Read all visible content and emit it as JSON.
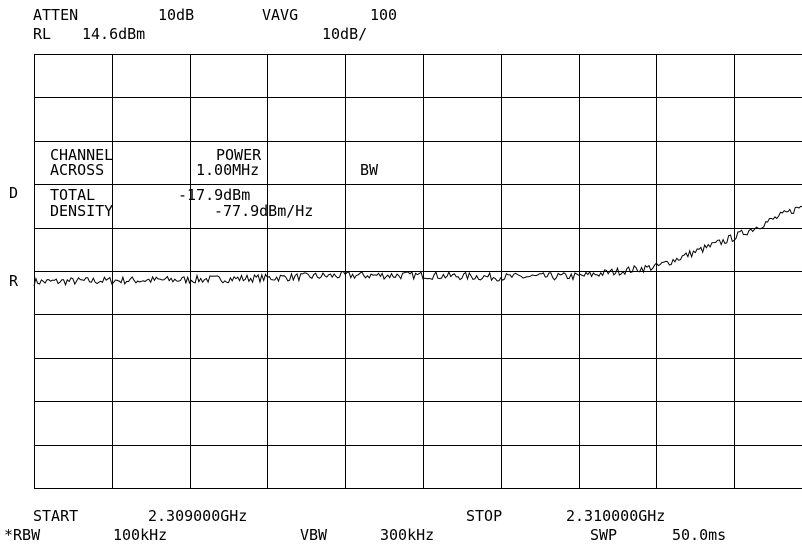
{
  "header": {
    "atten_label": "ATTEN",
    "atten_value": "10dB",
    "vavg_label": "VAVG",
    "vavg_value": "100",
    "rl_label": "RL",
    "rl_value": "14.6dBm",
    "scale": "10dB/"
  },
  "side_labels": {
    "d": "D",
    "r": "R"
  },
  "readout": {
    "channel_label": "CHANNEL",
    "across_label": "ACROSS",
    "power_label": "POWER",
    "bw_value": "1.00MHz",
    "bw_label": "BW",
    "total_label": "TOTAL",
    "total_value": "-17.9dBm",
    "density_label": "DENSITY",
    "density_value": "-77.9dBm/Hz"
  },
  "footer": {
    "start_label": "START",
    "start_value": "2.309000GHz",
    "stop_label": "STOP",
    "stop_value": "2.310000GHz",
    "rbw_label": "*RBW",
    "rbw_value": "100kHz",
    "vbw_label": "VBW",
    "vbw_value": "300kHz",
    "swp_label": "SWP",
    "swp_value": "50.0ms"
  },
  "chart_data": {
    "type": "line",
    "x_start_ghz": 2.309,
    "x_stop_ghz": 2.31,
    "ylim": [
      -85.4,
      14.6
    ],
    "grid": true,
    "series": [
      {
        "x": [
          2.309,
          2.3091,
          2.3092,
          2.3093,
          2.3094,
          2.3095,
          2.3096,
          2.3097,
          2.3098,
          2.3099,
          2.31
        ],
        "values": [
          -37.9,
          -37.6,
          -37.4,
          -37.0,
          -36.4,
          -36.4,
          -36.8,
          -36.6,
          -34.4,
          -27.6,
          -19.4
        ]
      }
    ],
    "colors": {
      "trace": "#000000",
      "grid": "#000000",
      "background": "#ffffff"
    }
  }
}
